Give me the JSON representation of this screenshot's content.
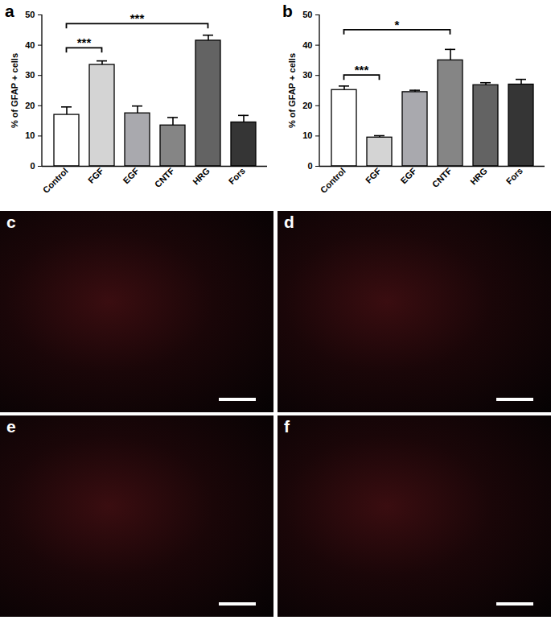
{
  "chart_data": [
    {
      "type": "bar",
      "title": "a",
      "ylabel": "% of GFAP + cells",
      "categories": [
        "Control",
        "FGF",
        "EGF",
        "CNTF",
        "HRG",
        "Fors"
      ],
      "values": [
        17,
        33.5,
        17.5,
        13.5,
        41.5,
        14.5
      ],
      "errors": [
        2.6,
        1.3,
        2.4,
        2.6,
        1.8,
        2.3
      ],
      "colors": [
        "#ffffff",
        "#d4d4d4",
        "#a9a9ae",
        "#858585",
        "#636363",
        "#353535"
      ],
      "ylim": [
        0,
        50
      ],
      "yticks": [
        0,
        10,
        20,
        30,
        40,
        50
      ],
      "annotations": [
        {
          "from": "Control",
          "to": "FGF",
          "y": 39,
          "label": "***"
        },
        {
          "from": "Control",
          "to": "HRG",
          "y": 47,
          "label": "***"
        }
      ]
    },
    {
      "type": "bar",
      "title": "b",
      "ylabel": "% of GFAP + cells",
      "categories": [
        "Control",
        "FGF",
        "EGF",
        "CNTF",
        "HRG",
        "Fors"
      ],
      "values": [
        25.2,
        9.5,
        24.5,
        35,
        26.8,
        27
      ],
      "errors": [
        1.3,
        0.6,
        0.6,
        3.6,
        0.8,
        1.7
      ],
      "colors": [
        "#ffffff",
        "#d4d4d4",
        "#a9a9ae",
        "#858585",
        "#636363",
        "#353535"
      ],
      "ylim": [
        0,
        50
      ],
      "yticks": [
        0,
        10,
        20,
        30,
        40,
        50
      ],
      "annotations": [
        {
          "from": "Control",
          "to": "FGF",
          "y": 30,
          "label": "***"
        },
        {
          "from": "Control",
          "to": "CNTF",
          "y": 45,
          "label": "*"
        }
      ]
    }
  ],
  "panels": [
    {
      "label": "c"
    },
    {
      "label": "d"
    },
    {
      "label": "e"
    },
    {
      "label": "f"
    }
  ]
}
